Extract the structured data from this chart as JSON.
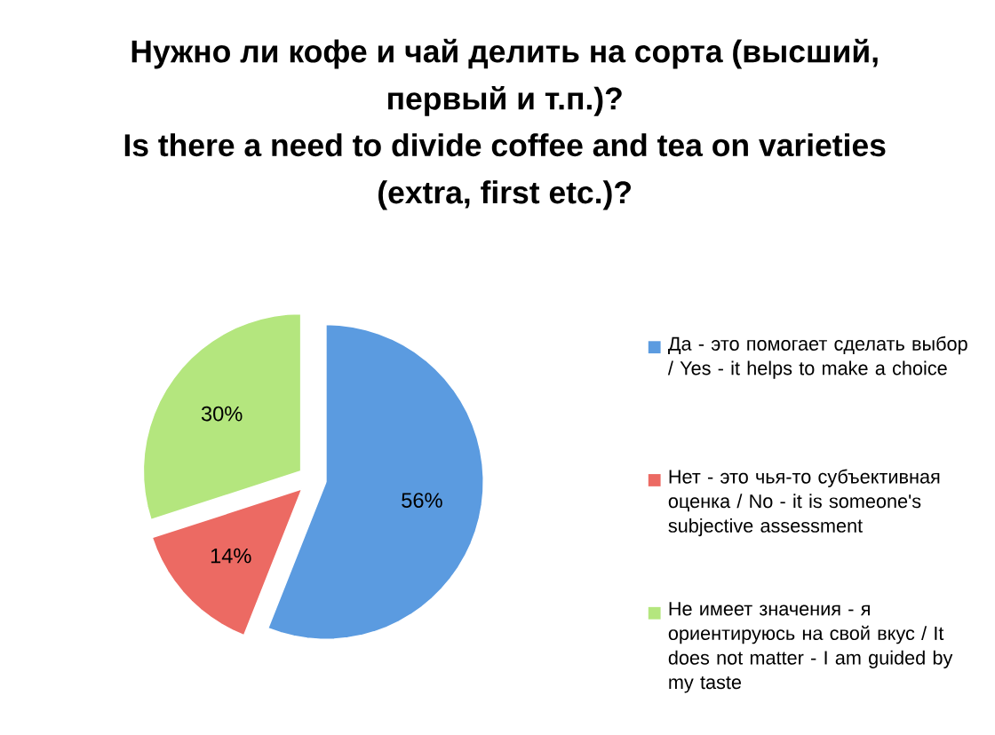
{
  "chart_data": {
    "type": "pie",
    "title": "Нужно ли кофе и чай делить на сорта (высший, первый и т.п.)?",
    "subtitle": "Is there a need to divide coffee and tea on varieties (extra, first etc.)?",
    "categories": [
      "Да - это помогает сделать выбор / Yes - it helps to make a choice",
      "Нет - это чья-то субъективная оценка / No - it is someone's subjective assessment",
      "Не имеет значения - я ориентируюсь на свой вкус / It does not matter - I am guided by my taste"
    ],
    "values": [
      56,
      14,
      30
    ],
    "value_labels": [
      "56%",
      "14%",
      "30%"
    ],
    "colors": [
      "#5b9be0",
      "#ec6a63",
      "#b4e67e"
    ],
    "legend": "right"
  }
}
